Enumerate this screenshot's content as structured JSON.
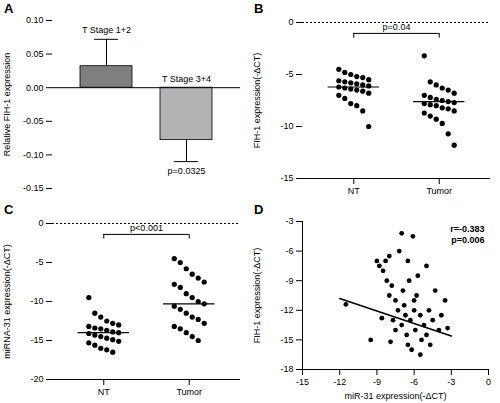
{
  "chart_data": [
    {
      "type": "bar",
      "title": "A",
      "categories": [
        "T Stage 1+2",
        "T Stage 3+4"
      ],
      "values": [
        0.032,
        -0.078
      ],
      "errors": [
        0.04,
        0.032
      ],
      "colors": [
        "#7f7f7f",
        "#b3b3b3"
      ],
      "y_label": "Relative FIH-1 expression",
      "ylim": [
        -0.15,
        0.1
      ],
      "yticks": [
        {
          "value": -0.15,
          "label": "-0.15"
        },
        {
          "value": -0.1,
          "label": "-0.10"
        },
        {
          "value": -0.05,
          "label": "-0.05"
        },
        {
          "value": 0,
          "label": "0.00"
        },
        {
          "value": 0.05,
          "label": "0.05"
        },
        {
          "value": 0.1,
          "label": "0.10"
        }
      ],
      "annotations": [
        "p=0.0325"
      ],
      "tick_labels": "y"
    },
    {
      "type": "strip",
      "title": "B",
      "categories": [
        "NT",
        "Tumor"
      ],
      "values": [
        [
          -4.5,
          -4.8,
          -5.0,
          -5.2,
          -5.3,
          -5.5,
          -5.6,
          -5.7,
          -5.8,
          -5.9,
          -6.0,
          -6.1,
          -6.2,
          -6.3,
          -6.4,
          -6.5,
          -6.6,
          -6.8,
          -7.0,
          -7.3,
          -7.8,
          -8.0,
          -8.5,
          -10.0
        ],
        [
          -3.2,
          -5.7,
          -6.0,
          -6.3,
          -6.5,
          -6.8,
          -7.0,
          -7.2,
          -7.4,
          -7.5,
          -7.6,
          -7.7,
          -7.8,
          -7.9,
          -8.0,
          -8.2,
          -8.3,
          -8.5,
          -8.7,
          -9.0,
          -9.3,
          -9.7,
          -10.7,
          -11.8
        ]
      ],
      "means": [
        -6.2,
        -7.6
      ],
      "color": "#000000",
      "y_label": "FIH-1 expression(-ΔCT)",
      "ylim": [
        -15,
        0
      ],
      "yticks": [
        -15,
        -10,
        -5,
        0
      ],
      "annotations": [
        "p=0.04"
      ]
    },
    {
      "type": "strip",
      "title": "C",
      "categories": [
        "NT",
        "Tumor"
      ],
      "values": [
        [
          -9.5,
          -11.5,
          -12.0,
          -12.5,
          -12.8,
          -13.0,
          -13.2,
          -13.4,
          -13.5,
          -13.7,
          -13.9,
          -14.0,
          -14.1,
          -14.3,
          -14.5,
          -14.7,
          -14.9,
          -15.1,
          -15.3,
          -15.6,
          -16.0,
          -16.2,
          -16.5
        ],
        [
          -4.5,
          -5.0,
          -5.8,
          -6.5,
          -7.0,
          -7.5,
          -7.8,
          -8.2,
          -9.0,
          -9.5,
          -10.0,
          -10.3,
          -10.6,
          -11.0,
          -11.5,
          -12.0,
          -12.3,
          -12.8,
          -13.2,
          -13.5,
          -14.0,
          -14.5,
          -15.0
        ]
      ],
      "means": [
        -14.0,
        -10.3
      ],
      "color": "#000000",
      "y_label": "miRNA-31 expression(-ΔCT)",
      "ylim": [
        -20,
        0
      ],
      "yticks": [
        -20,
        -15,
        -10,
        -5,
        0
      ],
      "annotations": [
        "p<0.001"
      ]
    },
    {
      "type": "scatter",
      "title": "D",
      "x": [
        -11.5,
        -9.5,
        -9.0,
        -8.8,
        -8.5,
        -8.3,
        -8.0,
        -8.2,
        -8.0,
        -7.8,
        -7.7,
        -7.5,
        -7.5,
        -7.3,
        -7.2,
        -7.0,
        -7.0,
        -6.9,
        -6.8,
        -6.7,
        -6.6,
        -6.5,
        -6.5,
        -6.4,
        -6.3,
        -6.2,
        -6.0,
        -6.0,
        -5.9,
        -5.8,
        -5.7,
        -5.5,
        -5.5,
        -5.4,
        -5.2,
        -5.0,
        -5.0,
        -4.8,
        -4.7,
        -4.5,
        -4.3,
        -4.0,
        -3.8,
        -3.5,
        -3.3,
        -6.1,
        -7.9,
        -8.6
      ],
      "values": [
        -11.4,
        -15.0,
        -7.0,
        -7.5,
        -8.0,
        -7.0,
        -6.5,
        -9.0,
        -10.5,
        -9.5,
        -13.0,
        -11.0,
        -14.0,
        -12.0,
        -6.0,
        -4.2,
        -13.5,
        -10.0,
        -11.5,
        -12.5,
        -14.5,
        -7.0,
        -15.5,
        -9.0,
        -13.0,
        -16.0,
        -11.0,
        -12.0,
        -14.0,
        -10.5,
        -8.5,
        -12.5,
        -16.5,
        -15.0,
        -13.5,
        -7.5,
        -14.5,
        -12.0,
        -15.5,
        -13.0,
        -10.0,
        -14.0,
        -12.5,
        -11.0,
        -13.8,
        -4.5,
        -15.2,
        -12.8
      ],
      "trendline": {
        "x": [
          -12,
          -3
        ],
        "values": [
          -10.8,
          -14.6
        ]
      },
      "color": "#000000",
      "x_label": "miR-31 expression(-ΔCT)",
      "y_label": "FIH-1 expression(-ΔCT)",
      "xlim": [
        -15,
        0
      ],
      "xticks": [
        -15,
        -12,
        -9,
        -6,
        -3,
        0
      ],
      "ylim": [
        -18,
        -3
      ],
      "yticks": [
        -18,
        -15,
        -12,
        -9,
        -6,
        -3
      ],
      "annotations": [
        "r=-0.383",
        "p=0.006"
      ]
    }
  ]
}
